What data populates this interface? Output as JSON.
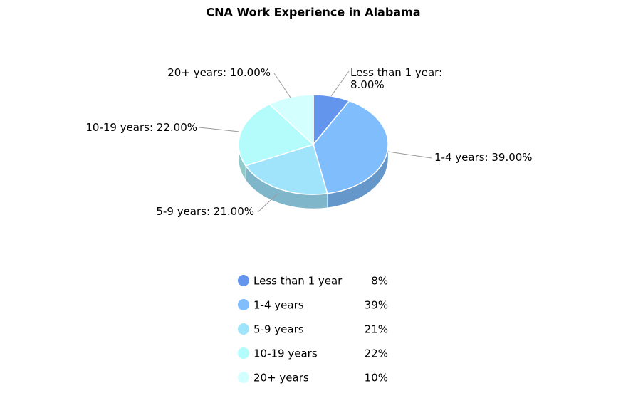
{
  "chart_data": {
    "type": "pie",
    "title": "CNA Work Experience in Alabama",
    "categories": [
      "Less than 1 year",
      "1-4 years",
      "5-9 years",
      "10-19 years",
      "20+ years"
    ],
    "values": [
      8,
      39,
      21,
      22,
      10
    ],
    "value_labels": [
      "Less than 1 year: 8.00%",
      "1-4 years: 39.00%",
      "5-9 years: 21.00%",
      "10-19 years: 22.00%",
      "20+ years: 10.00%"
    ],
    "legend_value_labels": [
      "8%",
      "39%",
      "21%",
      "22%",
      "10%"
    ],
    "colors": [
      "#6495ed",
      "#80bdfd",
      "#a0e4fb",
      "#b4fcfc",
      "#d4ffff"
    ],
    "legend": "bottom"
  }
}
